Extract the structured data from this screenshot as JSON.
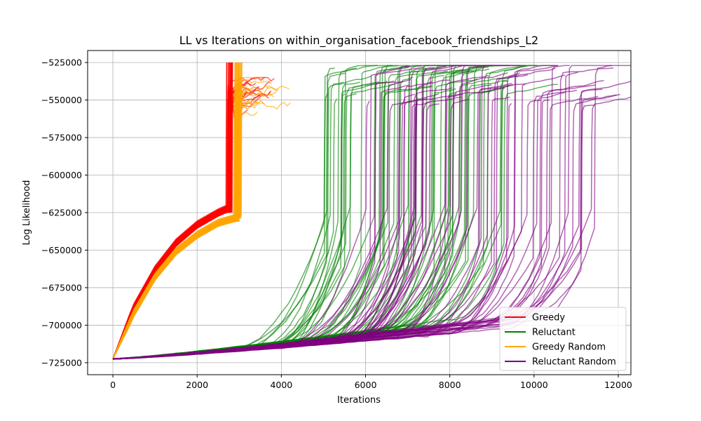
{
  "chart_data": {
    "type": "line",
    "title": "LL vs Iterations on within_organisation_facebook_friendships_L2",
    "xlabel": "Iterations",
    "ylabel": "Log Likelihood",
    "xlim": [
      -600,
      12300
    ],
    "ylim": [
      -733000,
      -517000
    ],
    "xticks": [
      0,
      2000,
      4000,
      6000,
      8000,
      10000,
      12000
    ],
    "xtick_labels": [
      "0",
      "2000",
      "4000",
      "6000",
      "8000",
      "10000",
      "12000"
    ],
    "yticks": [
      -725000,
      -700000,
      -675000,
      -650000,
      -625000,
      -600000,
      -575000,
      -550000,
      -525000
    ],
    "ytick_labels": [
      "−725000",
      "−700000",
      "−675000",
      "−650000",
      "−625000",
      "−600000",
      "−575000",
      "−550000",
      "−525000"
    ],
    "grid": true,
    "legend_position": "bottom-right",
    "series": [
      {
        "name": "Greedy",
        "color": "#ff0000",
        "runs": 40,
        "start": [
          0,
          -722500
        ],
        "curve_x": [
          0,
          500,
          1000,
          1500,
          2000,
          2500,
          2700
        ],
        "curve_y": [
          -722500,
          -688000,
          -663000,
          -645000,
          -633000,
          -625000,
          -622500
        ],
        "jump_x_range": [
          2680,
          2830
        ],
        "jump_end_y": -525000,
        "tail_end_x_range": [
          2800,
          3900
        ],
        "tail_end_y_range": [
          -560000,
          -540000
        ]
      },
      {
        "name": "Reluctant",
        "color": "#008000",
        "runs": 60,
        "start": [
          0,
          -722500
        ],
        "slow_curve_y_at_5000": [
          -707000,
          -712000
        ],
        "jump_x_range": [
          5000,
          9300
        ],
        "jump_end_y_range": [
          -550000,
          -527000
        ],
        "tail_end_x_range": [
          5500,
          10900
        ]
      },
      {
        "name": "Greedy Random",
        "color": "#ffa500",
        "runs": 40,
        "start": [
          0,
          -722500
        ],
        "curve_x": [
          0,
          500,
          1000,
          1500,
          2000,
          2500,
          3000
        ],
        "curve_y": [
          -722500,
          -692000,
          -668000,
          -651000,
          -640000,
          -632000,
          -628000
        ],
        "jump_x_range": [
          2850,
          3050
        ],
        "jump_end_y": -525000,
        "tail_end_x_range": [
          3000,
          4250
        ],
        "tail_end_y_range": [
          -565000,
          -535000
        ]
      },
      {
        "name": "Reluctant Random",
        "color": "#800080",
        "runs": 60,
        "start": [
          0,
          -722500
        ],
        "slow_curve_y_at_5000": [
          -709000,
          -713000
        ],
        "jump_x_range": [
          6000,
          11500
        ],
        "jump_end_y_range": [
          -555000,
          -527000
        ],
        "tail_end_x_range": [
          6500,
          11700
        ]
      }
    ]
  }
}
